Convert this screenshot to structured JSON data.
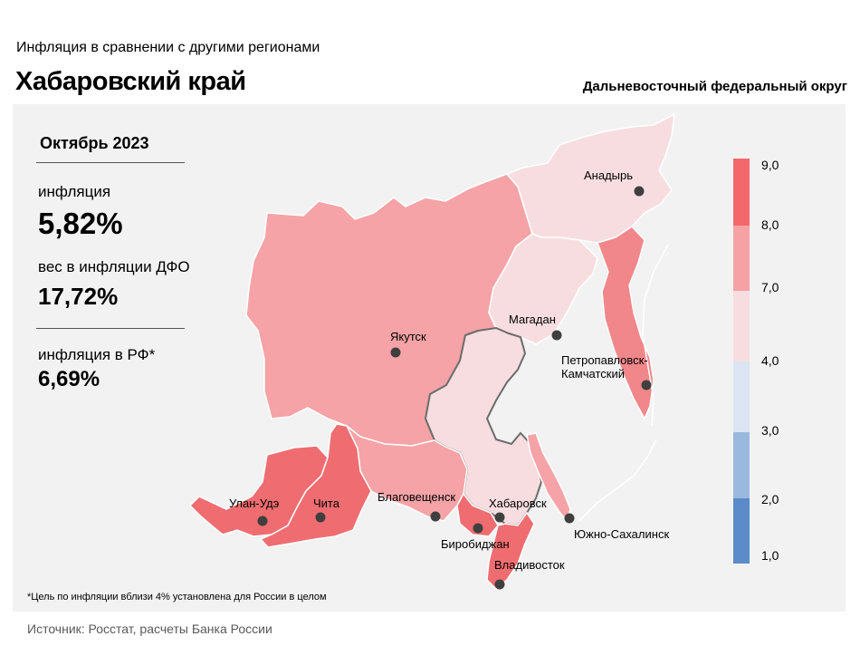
{
  "header": {
    "subtitle": "Инфляция  в сравнении  с другими  регионами",
    "region": "Хабаровский край",
    "district": "Дальневосточный федеральный округ"
  },
  "summary": {
    "period": "Октябрь 2023",
    "inflation_label": "инфляция",
    "inflation_value": "5,82%",
    "weight_label": "вес в инфляции  ДФО",
    "weight_value": "17,72%",
    "rf_label": "инфляция  в РФ*",
    "rf_value": "6,69%"
  },
  "cities": {
    "anadyr": "Анадырь",
    "magadan": "Магадан",
    "yakutsk": "Якутск",
    "petropavlovsk_1": "Петропавловск-",
    "petropavlovsk_2": "Камчатский",
    "ulan_ude": "Улан-Удэ",
    "chita": "Чита",
    "blagoveshchensk": "Благовещенск",
    "khabarovsk": "Хабаровск",
    "yuzhno": "Южно-Сахалинск",
    "birobidzhan": "Биробиджан",
    "vladivostok": "Владивосток"
  },
  "legend": {
    "ticks": [
      "9,0",
      "8,0",
      "7,0",
      "4,0",
      "3,0",
      "2,0",
      "1,0"
    ],
    "colors": [
      "#f4686c",
      "#f6a2a4",
      "#f8dde0",
      "#dbe5f3",
      "#9bb8de",
      "#5b8bc8"
    ]
  },
  "region_colors": {
    "yakutia": "#f5a3a6",
    "chukotka": "#f8dde0",
    "magadan": "#f8dde0",
    "kamchatka": "#f1878a",
    "buryatia": "#ef6d70",
    "zabaykalsky": "#ef6d70",
    "amur": "#f5a3a6",
    "khabarovsk": "#f8dde0",
    "jewish_ao": "#ef6d70",
    "primorsky": "#ef6d70",
    "sakhalin": "#f5a3a6"
  },
  "footnote": "*Цель по инфляции вблизи 4% установлена для России в целом",
  "source": "Источник: Росстат, расчеты  Банка России"
}
